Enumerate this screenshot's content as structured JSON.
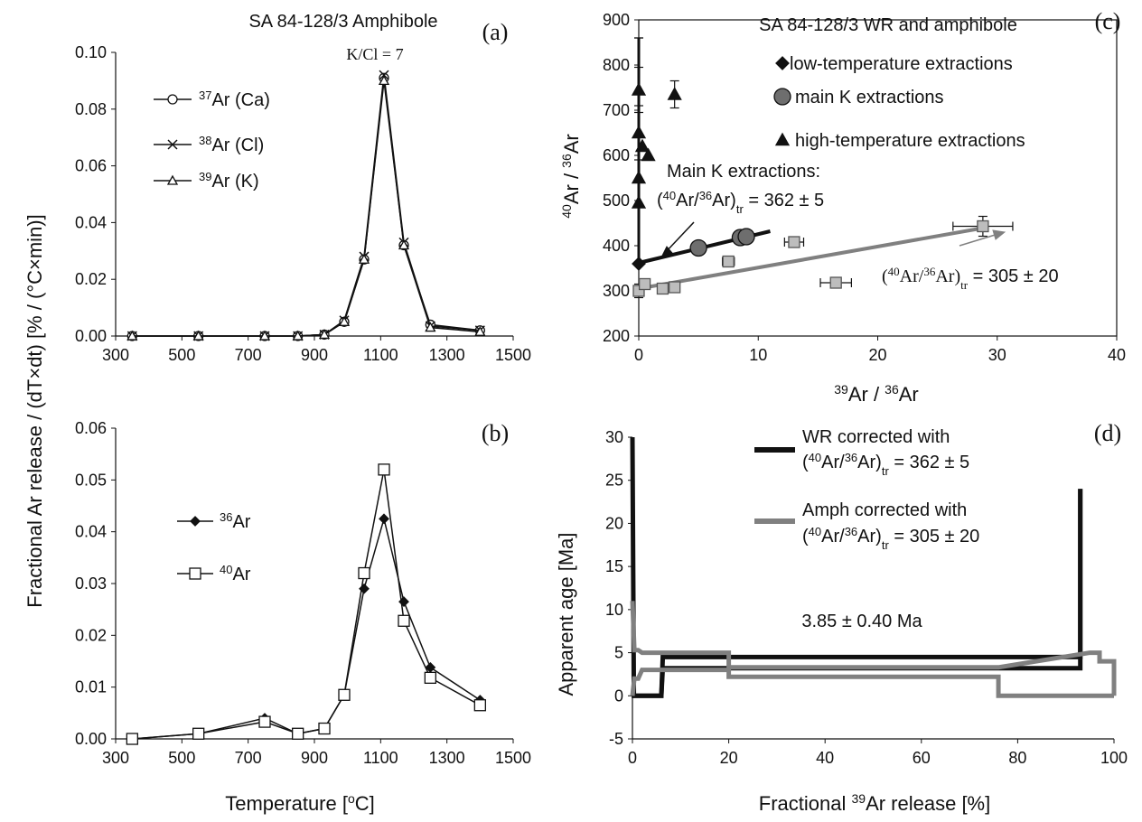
{
  "figure": {
    "shared_ylabel": "Fractional Ar release / (dT×dt)  [% / (°C×min)]"
  },
  "colors": {
    "black": "#111111",
    "gray": "#808080",
    "gray_fill": "#bdbdbd",
    "dark_fill": "#6e6e6e"
  },
  "chart_data": [
    {
      "id": "a",
      "type": "line",
      "panel_label": "(a)",
      "title": "SA 84-128/3 Amphibole",
      "annotation": "K/Cl = 7",
      "xlim": [
        300,
        1500
      ],
      "ylim": [
        0,
        0.1
      ],
      "xticks": [
        "300",
        "500",
        "700",
        "900",
        "1100",
        "1300",
        "1500"
      ],
      "yticks": [
        "0.00",
        "0.02",
        "0.04",
        "0.06",
        "0.08",
        "0.10"
      ],
      "x": [
        350,
        550,
        750,
        850,
        930,
        990,
        1050,
        1110,
        1170,
        1250,
        1400
      ],
      "series": [
        {
          "name": "37Ar (Ca)",
          "sup": "37",
          "base": "Ar (Ca)",
          "marker": "circle",
          "values": [
            0.0,
            0.0,
            0.0,
            0.0,
            0.0005,
            0.005,
            0.027,
            0.091,
            0.032,
            0.004,
            0.002
          ]
        },
        {
          "name": "38Ar (Cl)",
          "sup": "38",
          "base": "Ar (Cl)",
          "marker": "cross",
          "values": [
            0.0,
            0.0,
            0.0,
            0.0,
            0.0005,
            0.0055,
            0.028,
            0.092,
            0.033,
            0.0035,
            0.002
          ]
        },
        {
          "name": "39Ar (K)",
          "sup": "39",
          "base": "Ar (K)",
          "marker": "triangle",
          "values": [
            0.0,
            0.0,
            0.0,
            0.0,
            0.0005,
            0.005,
            0.027,
            0.09,
            0.032,
            0.003,
            0.0015
          ]
        }
      ]
    },
    {
      "id": "b",
      "type": "line",
      "panel_label": "(b)",
      "xlabel": "Temperature [oC]",
      "xlabel_pre": "Temperature [",
      "xlabel_sup": "o",
      "xlabel_post": "C]",
      "xlim": [
        300,
        1500
      ],
      "ylim": [
        0,
        0.06
      ],
      "xticks": [
        "300",
        "500",
        "700",
        "900",
        "1100",
        "1300",
        "1500"
      ],
      "yticks": [
        "0.00",
        "0.01",
        "0.02",
        "0.03",
        "0.04",
        "0.05",
        "0.06"
      ],
      "x": [
        350,
        550,
        750,
        850,
        930,
        990,
        1050,
        1110,
        1170,
        1250,
        1400
      ],
      "series": [
        {
          "name": "36Ar",
          "sup": "36",
          "base": "Ar",
          "marker": "diamond",
          "values": [
            0.0,
            0.001,
            0.004,
            0.001,
            0.002,
            0.0085,
            0.029,
            0.0425,
            0.0265,
            0.0138,
            0.0075
          ]
        },
        {
          "name": "40Ar",
          "sup": "40",
          "base": "Ar",
          "marker": "square",
          "values": [
            0.0,
            0.001,
            0.0033,
            0.001,
            0.002,
            0.0085,
            0.032,
            0.052,
            0.0228,
            0.0118,
            0.0065
          ]
        }
      ]
    },
    {
      "id": "c",
      "type": "scatter",
      "panel_label": "(c)",
      "title": "SA 84-128/3 WR and amphibole",
      "xlabel": "39Ar / 36Ar",
      "ylabel": "40Ar / 36Ar",
      "xlim": [
        0,
        40
      ],
      "ylim": [
        200,
        900
      ],
      "xticks": [
        "0",
        "10",
        "20",
        "30",
        "40"
      ],
      "yticks": [
        "200",
        "300",
        "400",
        "500",
        "600",
        "700",
        "800",
        "900"
      ],
      "legend": {
        "placement": "top-right"
      },
      "series": [
        {
          "name": "low-temperature extractions",
          "marker": "diamond",
          "color": "#111111",
          "points": [
            [
              0.0,
              360
            ]
          ]
        },
        {
          "name": "main K extractions",
          "marker": "circle",
          "color": "#6e6e6e",
          "points": [
            [
              5.0,
              395
            ],
            [
              8.5,
              418
            ],
            [
              9.0,
              420
            ]
          ]
        },
        {
          "name": "high-temperature extractions",
          "marker": "triangle",
          "color": "#111111",
          "points": [
            [
              0.0,
              745
            ],
            [
              0.0,
              650
            ],
            [
              0.3,
              620
            ],
            [
              0.8,
              600
            ],
            [
              0.0,
              550
            ],
            [
              0.0,
              495
            ],
            [
              3.0,
              735
            ]
          ]
        },
        {
          "name": "",
          "marker": "square",
          "color": "#bdbdbd",
          "points": [
            [
              0.0,
              300
            ],
            [
              0.5,
              315
            ],
            [
              2.0,
              305
            ],
            [
              3.0,
              308
            ],
            [
              7.5,
              365
            ],
            [
              13.0,
              408
            ],
            [
              16.5,
              318
            ],
            [
              28.8,
              443
            ]
          ]
        }
      ],
      "error_bars": {
        "y": [
          [
            0.0,
            745,
            50
          ],
          [
            0.0,
            650,
            60
          ],
          [
            3.0,
            735,
            30
          ],
          [
            28.8,
            443,
            22
          ],
          [
            0.0,
            300,
            15
          ],
          [
            0.0,
            860,
            0
          ]
        ],
        "x": [
          [
            28.8,
            443,
            2.5
          ],
          [
            16.5,
            318,
            1.3
          ],
          [
            13.0,
            408,
            0.8
          ],
          [
            7.5,
            365,
            0.5
          ]
        ]
      },
      "fits": [
        {
          "label_line1": "Main K extractions:",
          "label_line2": "(40Ar/36Ar)tr = 362 ± 5",
          "x0": 0,
          "y0": 362,
          "x1": 11,
          "y1": 432,
          "color": "#111111"
        },
        {
          "label_line2": "(40Ar/36Ar)tr = 305 ± 20",
          "x0": 0,
          "y0": 305,
          "x1": 29,
          "y1": 440,
          "color": "#808080"
        }
      ],
      "vertical_line": {
        "x": 0,
        "y0": 360,
        "y1": 860
      }
    },
    {
      "id": "d",
      "type": "line",
      "panel_label": "(d)",
      "xlabel": "Fractional 39Ar release [%]",
      "ylabel": "Apparent age [Ma]",
      "xlim": [
        0,
        100
      ],
      "ylim": [
        -5,
        30
      ],
      "xticks": [
        "0",
        "20",
        "40",
        "60",
        "80",
        "100"
      ],
      "yticks": [
        "-5",
        "0",
        "5",
        "10",
        "15",
        "20",
        "25",
        "30"
      ],
      "annotation": "3.85 ± 0.40 Ma",
      "series": [
        {
          "name": "WR corrected with (40Ar/36Ar)tr = 362 ± 5",
          "color": "#111111",
          "steps": [
            [
              0,
              30
            ],
            [
              0.5,
              0
            ],
            [
              6,
              0
            ],
            [
              6.5,
              3.5
            ],
            [
              20,
              4.5
            ],
            [
              75,
              3.5
            ],
            [
              93,
              4.5
            ]
          ],
          "upper": [
            [
              0,
              30
            ],
            [
              0.3,
              0
            ],
            [
              6,
              0
            ],
            [
              6.3,
              4.5
            ],
            [
              20,
              4.5
            ],
            [
              75,
              4.5
            ],
            [
              93,
              4.5
            ],
            [
              93,
              24
            ]
          ],
          "lower": [
            [
              0,
              0
            ],
            [
              6,
              0
            ],
            [
              6.3,
              3.2
            ],
            [
              20,
              3.2
            ],
            [
              75,
              3.2
            ],
            [
              93,
              3.2
            ],
            [
              93,
              24
            ]
          ]
        },
        {
          "name": "Amph corrected with (40Ar/36Ar)tr = 305 ± 20",
          "color": "#808080",
          "upper": [
            [
              0,
              11
            ],
            [
              0.4,
              5.3
            ],
            [
              1.2,
              5.3
            ],
            [
              2,
              5.0
            ],
            [
              20,
              5.0
            ],
            [
              20,
              3.3
            ],
            [
              76,
              3.3
            ],
            [
              76,
              3.3
            ],
            [
              95,
              5.0
            ],
            [
              97,
              5.0
            ],
            [
              97,
              4.0
            ],
            [
              100,
              4.0
            ],
            [
              100,
              0
            ]
          ],
          "lower": [
            [
              0,
              0
            ],
            [
              0.4,
              2.0
            ],
            [
              1.2,
              2.0
            ],
            [
              2,
              3.0
            ],
            [
              20,
              3.0
            ],
            [
              20,
              2.2
            ],
            [
              76,
              2.2
            ],
            [
              76,
              0
            ],
            [
              95,
              0
            ],
            [
              97,
              0
            ],
            [
              97,
              0
            ],
            [
              100,
              0
            ]
          ]
        }
      ],
      "legend_line1a": "WR corrected with",
      "legend_line1b": "(40Ar/36Ar)tr = 362 ± 5",
      "legend_line2a": "Amph corrected with",
      "legend_line2b": "(40Ar/36Ar)tr = 305 ± 20"
    }
  ]
}
